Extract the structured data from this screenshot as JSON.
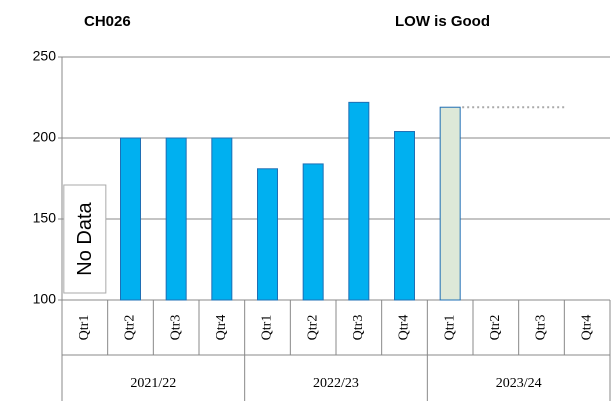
{
  "chart_data": {
    "type": "bar",
    "title": "CH026",
    "subtitle": "LOW is Good",
    "categories": [
      "Qtr1",
      "Qtr2",
      "Qtr3",
      "Qtr4",
      "Qtr1",
      "Qtr2",
      "Qtr3",
      "Qtr4",
      "Qtr1",
      "Qtr2",
      "Qtr3",
      "Qtr4"
    ],
    "groups": [
      "2021/22",
      "2022/23",
      "2023/24"
    ],
    "values": [
      null,
      200,
      200,
      200,
      181,
      184,
      222,
      204,
      219,
      null,
      null,
      null
    ],
    "colors": [
      "#00b0f0",
      "#00b0f0",
      "#00b0f0",
      "#00b0f0",
      "#00b0f0",
      "#00b0f0",
      "#00b0f0",
      "#00b0f0",
      "#dde8d8",
      "#00b0f0",
      "#00b0f0",
      "#00b0f0"
    ],
    "stroke": "#1f6fb4",
    "annotation": "No Data",
    "reference_line": 219,
    "ylim": [
      100,
      250
    ],
    "yticks": [
      100,
      150,
      200,
      250
    ],
    "grid": true
  }
}
